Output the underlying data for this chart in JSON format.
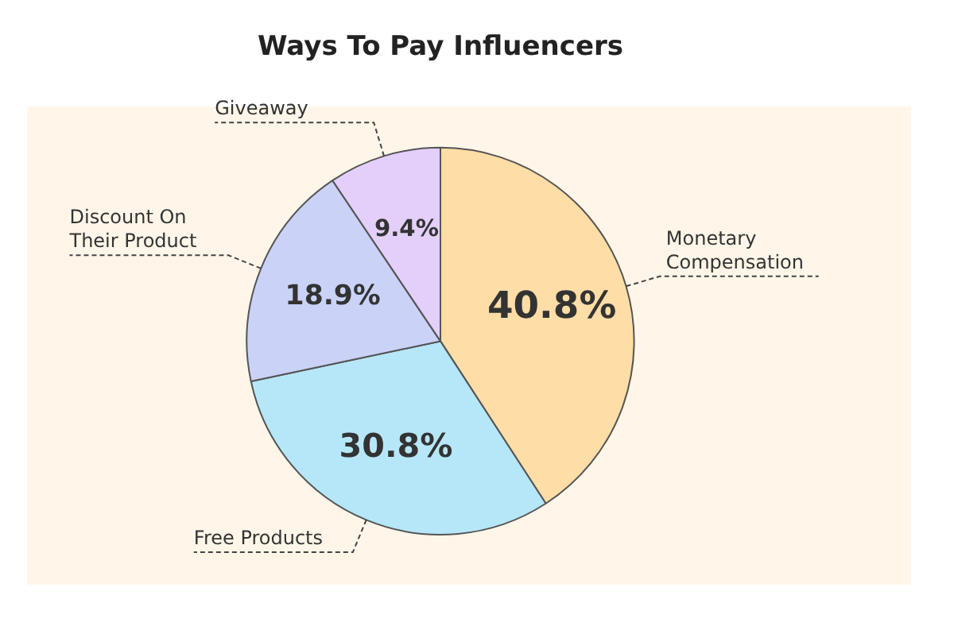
{
  "chart_data": {
    "type": "pie",
    "title": "Ways To Pay Influencers",
    "categories": [
      "Monetary Compensation",
      "Free Products",
      "Discount On Their Product",
      "Giveaway"
    ],
    "values": [
      40.8,
      30.8,
      18.9,
      9.4
    ],
    "value_labels": [
      "40.8%",
      "30.8%",
      "18.9%",
      "9.4%"
    ],
    "colors": [
      "#fedda6",
      "#b6e7f8",
      "#cad2f8",
      "#e4cffb"
    ],
    "legend": false
  }
}
